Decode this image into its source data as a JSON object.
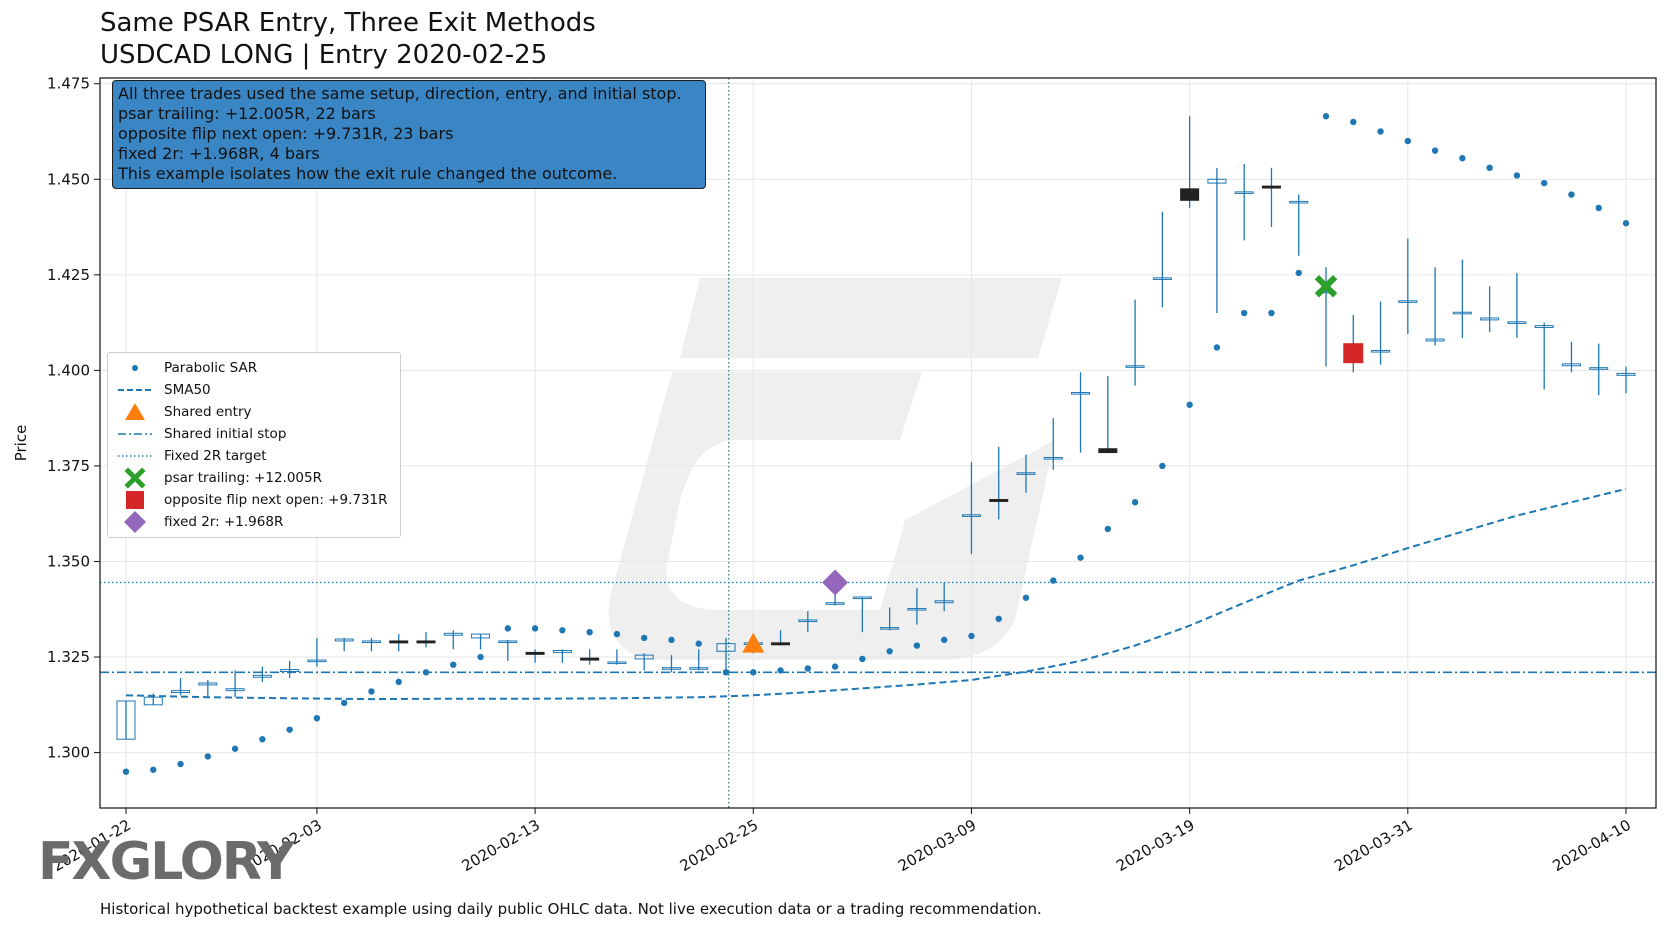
{
  "title": "Same PSAR Entry, Three Exit Methods",
  "subtitle": "USDCAD LONG | Entry 2020-02-25",
  "footnote": "Historical hypothetical backtest example using daily public OHLC data. Not live execution data or a trading recommendation.",
  "watermark_logo": "FXGLORY",
  "info_box": {
    "lines": [
      "All three trades used the same setup, direction, entry, and initial stop.",
      "psar trailing: +12.005R, 22 bars",
      "opposite flip next open: +9.731R, 23 bars",
      "fixed 2r: +1.968R, 4 bars",
      "This example isolates how the exit rule changed the outcome."
    ]
  },
  "legend": {
    "placement": "center-left",
    "items": [
      {
        "key": "psar",
        "label": "Parabolic SAR"
      },
      {
        "key": "sma",
        "label": "SMA50"
      },
      {
        "key": "entry",
        "label": "Shared entry"
      },
      {
        "key": "stop",
        "label": "Shared initial stop"
      },
      {
        "key": "target",
        "label": "Fixed 2R target"
      },
      {
        "key": "exit_psar",
        "label": "psar trailing: +12.005R"
      },
      {
        "key": "exit_flip",
        "label": "opposite flip next open: +9.731R"
      },
      {
        "key": "exit_fixed",
        "label": "fixed 2r: +1.968R"
      }
    ]
  },
  "colors": {
    "series": "#1f77b4",
    "candle_body": "#222222",
    "entry": "#ff7f0e",
    "exit_psar": "#2ca02c",
    "exit_flip": "#d62728",
    "exit_fixed": "#9467bd",
    "info_box": "#3a86c4",
    "grid": "#e6e6e6"
  },
  "chart_data": {
    "type": "candlestick",
    "ylabel": "Price",
    "xlabel": "",
    "ylim": [
      1.2855,
      1.4765
    ],
    "grid": true,
    "y_ticks": [
      1.3,
      1.325,
      1.35,
      1.375,
      1.4,
      1.425,
      1.45,
      1.475
    ],
    "x_ticks": [
      {
        "bar": 0,
        "label": "2020-01-22"
      },
      {
        "bar": 7,
        "label": "2020-02-03"
      },
      {
        "bar": 15,
        "label": "2020-02-13"
      },
      {
        "bar": 23,
        "label": "2020-02-25"
      },
      {
        "bar": 31,
        "label": "2020-03-09"
      },
      {
        "bar": 39,
        "label": "2020-03-19"
      },
      {
        "bar": 47,
        "label": "2020-03-31"
      },
      {
        "bar": 55,
        "label": "2020-04-10"
      }
    ],
    "entry_vline_bar": 22.1,
    "candles": [
      [
        1.3035,
        1.3135,
        1.3035,
        1.3135
      ],
      [
        1.3125,
        1.3155,
        1.3125,
        1.3145
      ],
      [
        1.3155,
        1.3195,
        1.315,
        1.316
      ],
      [
        1.3175,
        1.319,
        1.3145,
        1.318
      ],
      [
        1.316,
        1.3215,
        1.3145,
        1.3165
      ],
      [
        1.3195,
        1.3225,
        1.3185,
        1.32
      ],
      [
        1.321,
        1.324,
        1.3195,
        1.3215
      ],
      [
        1.324,
        1.33,
        1.3225,
        1.324
      ],
      [
        1.329,
        1.33,
        1.3265,
        1.3295
      ],
      [
        1.329,
        1.33,
        1.3265,
        1.329
      ],
      [
        1.329,
        1.331,
        1.3265,
        1.3285
      ],
      [
        1.329,
        1.3315,
        1.3275,
        1.3285
      ],
      [
        1.3305,
        1.332,
        1.327,
        1.331
      ],
      [
        1.33,
        1.331,
        1.327,
        1.331
      ],
      [
        1.329,
        1.3295,
        1.324,
        1.329
      ],
      [
        1.326,
        1.327,
        1.3235,
        1.3255
      ],
      [
        1.326,
        1.327,
        1.3235,
        1.3265
      ],
      [
        1.3245,
        1.327,
        1.323,
        1.324
      ],
      [
        1.3235,
        1.327,
        1.323,
        1.3235
      ],
      [
        1.3245,
        1.326,
        1.3215,
        1.3255
      ],
      [
        1.322,
        1.3255,
        1.321,
        1.322
      ],
      [
        1.322,
        1.327,
        1.3215,
        1.322
      ],
      [
        1.3265,
        1.33,
        1.321,
        1.3285
      ],
      [
        1.3285,
        1.331,
        1.326,
        1.3285
      ],
      [
        1.3285,
        1.332,
        1.328,
        1.328
      ],
      [
        1.3345,
        1.337,
        1.3315,
        1.3345
      ],
      [
        1.339,
        1.343,
        1.3385,
        1.339
      ],
      [
        1.3405,
        1.3405,
        1.3315,
        1.3405
      ],
      [
        1.3325,
        1.338,
        1.332,
        1.3325
      ],
      [
        1.3375,
        1.343,
        1.3335,
        1.3375
      ],
      [
        1.339,
        1.3445,
        1.337,
        1.3395
      ],
      [
        1.362,
        1.376,
        1.352,
        1.362
      ],
      [
        1.366,
        1.38,
        1.361,
        1.3655
      ],
      [
        1.373,
        1.378,
        1.368,
        1.373
      ],
      [
        1.377,
        1.3875,
        1.374,
        1.377
      ],
      [
        1.394,
        1.3995,
        1.3785,
        1.394
      ],
      [
        1.3795,
        1.3985,
        1.3785,
        1.3785
      ],
      [
        1.401,
        1.4185,
        1.396,
        1.401
      ],
      [
        1.424,
        1.4415,
        1.4165,
        1.424
      ],
      [
        1.4475,
        1.4665,
        1.4425,
        1.4445
      ],
      [
        1.449,
        1.453,
        1.415,
        1.45
      ],
      [
        1.4465,
        1.454,
        1.434,
        1.4465
      ],
      [
        1.448,
        1.453,
        1.4375,
        1.4475
      ],
      [
        1.444,
        1.446,
        1.43,
        1.444
      ],
      [
        1.4205,
        1.427,
        1.401,
        1.4205
      ],
      [
        1.406,
        1.4145,
        1.3995,
        1.4055
      ],
      [
        1.405,
        1.418,
        1.4015,
        1.405
      ],
      [
        1.418,
        1.4345,
        1.4095,
        1.418
      ],
      [
        1.4075,
        1.427,
        1.4065,
        1.408
      ],
      [
        1.415,
        1.429,
        1.4085,
        1.415
      ],
      [
        1.413,
        1.422,
        1.41,
        1.4135
      ],
      [
        1.4125,
        1.4255,
        1.4085,
        1.4125
      ],
      [
        1.411,
        1.4125,
        1.395,
        1.4115
      ],
      [
        1.401,
        1.4075,
        1.3995,
        1.4015
      ],
      [
        1.4005,
        1.407,
        1.3935,
        1.4005
      ],
      [
        1.3985,
        1.401,
        1.394,
        1.399
      ]
    ],
    "psar": [
      1.295,
      1.2955,
      1.297,
      1.299,
      1.301,
      1.3035,
      1.306,
      1.309,
      1.313,
      1.316,
      1.3185,
      1.321,
      1.323,
      1.325,
      1.3325,
      1.3325,
      1.332,
      1.3315,
      1.331,
      1.33,
      1.3295,
      1.3285,
      1.321,
      1.321,
      1.3215,
      1.322,
      1.3225,
      1.3245,
      1.3265,
      1.328,
      1.3295,
      1.3305,
      1.335,
      1.3405,
      1.345,
      1.351,
      1.3585,
      1.3655,
      1.375,
      1.391,
      1.406,
      1.415,
      1.415,
      1.4255,
      1.4665,
      1.465,
      1.4625,
      1.46,
      1.4575,
      1.4555,
      1.453,
      1.451,
      1.449,
      1.446,
      1.4425,
      1.4385
    ],
    "sma50": [
      [
        0,
        1.315
      ],
      [
        3,
        1.3145
      ],
      [
        6,
        1.3142
      ],
      [
        9,
        1.314
      ],
      [
        12,
        1.3141
      ],
      [
        15,
        1.3141
      ],
      [
        18,
        1.3142
      ],
      [
        21,
        1.3145
      ],
      [
        23,
        1.315
      ],
      [
        25,
        1.3158
      ],
      [
        27,
        1.3168
      ],
      [
        29,
        1.3178
      ],
      [
        31,
        1.319
      ],
      [
        33,
        1.3212
      ],
      [
        35,
        1.324
      ],
      [
        37,
        1.328
      ],
      [
        39,
        1.3332
      ],
      [
        41,
        1.3392
      ],
      [
        43,
        1.345
      ],
      [
        45,
        1.349
      ],
      [
        47,
        1.3535
      ],
      [
        49,
        1.3578
      ],
      [
        51,
        1.362
      ],
      [
        53,
        1.3655
      ],
      [
        55,
        1.369
      ]
    ],
    "stop": 1.321,
    "target": 1.3445,
    "markers": {
      "entry": {
        "bar": 23,
        "price": 1.3285,
        "label": "Shared entry"
      },
      "exit_psar": {
        "bar": 44,
        "price": 1.422,
        "label": "psar trailing: +12.005R"
      },
      "exit_flip": {
        "bar": 45,
        "price": 1.4045,
        "label": "opposite flip next open: +9.731R"
      },
      "exit_fixed": {
        "bar": 26,
        "price": 1.3445,
        "label": "fixed 2r: +1.968R"
      }
    }
  }
}
